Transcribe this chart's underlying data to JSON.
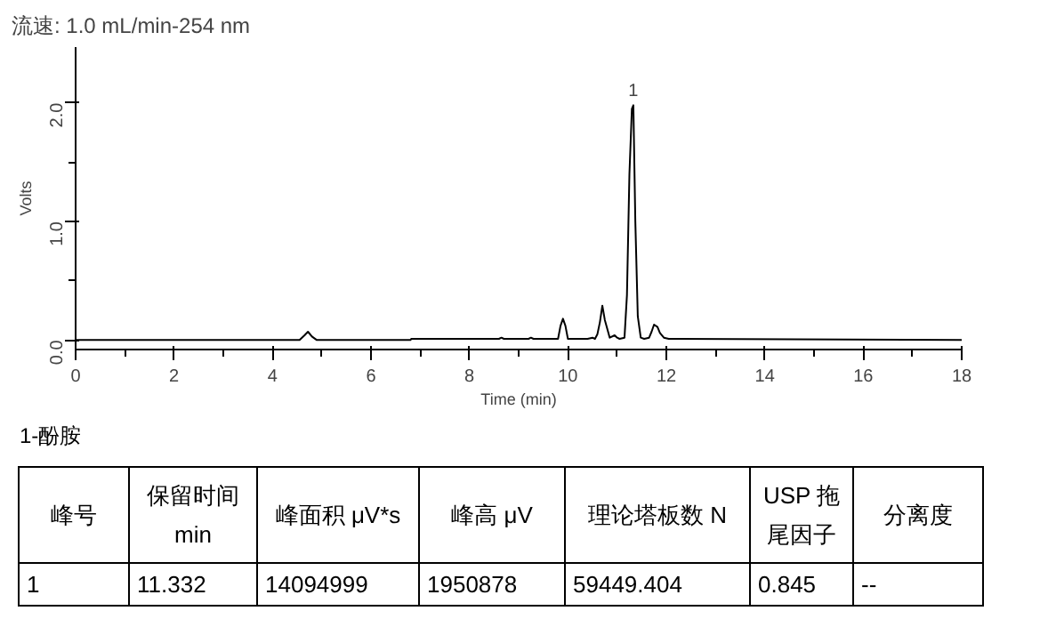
{
  "chart_data": {
    "type": "line",
    "title": "流速: 1.0 mL/min-254 nm",
    "xlabel": "Time (min)",
    "ylabel": "Volts",
    "x": [
      0,
      4.55,
      4.65,
      4.72,
      4.8,
      4.9,
      6.8,
      6.82,
      8.6,
      8.65,
      8.7,
      9.2,
      9.25,
      9.3,
      9.8,
      9.85,
      9.9,
      9.95,
      10.0,
      10.4,
      10.5,
      10.55,
      10.6,
      10.65,
      10.7,
      10.75,
      10.85,
      10.95,
      11.0,
      11.05,
      11.15,
      11.2,
      11.25,
      11.3,
      11.33,
      11.37,
      11.42,
      11.48,
      11.55,
      11.65,
      11.7,
      11.75,
      11.82,
      11.87,
      11.95,
      12.05,
      18
    ],
    "series": [
      {
        "color": "#000000",
        "values": [
          0,
          0,
          0.04,
          0.07,
          0.03,
          0,
          0,
          0.01,
          0.01,
          0.02,
          0.01,
          0.01,
          0.02,
          0.01,
          0.01,
          0.12,
          0.18,
          0.12,
          0.01,
          0.01,
          0.02,
          0.01,
          0.05,
          0.15,
          0.29,
          0.17,
          0.02,
          0.04,
          0.02,
          0.01,
          0.02,
          0.38,
          1.4,
          1.95,
          1.98,
          1.0,
          0.2,
          0.02,
          0.01,
          0.02,
          0.07,
          0.13,
          0.11,
          0.06,
          0.02,
          0.01,
          0
        ]
      }
    ],
    "xlim": [
      0,
      18
    ],
    "xticks": [
      0,
      2,
      4,
      6,
      8,
      10,
      12,
      14,
      16,
      18
    ],
    "ylim": [
      -0.08,
      2.47
    ],
    "yticks": [
      {
        "value": 0,
        "label": "0.0"
      },
      {
        "value": 1,
        "label": "1.0"
      },
      {
        "value": 2,
        "label": "2.0"
      }
    ],
    "grid": false,
    "annotations": [
      {
        "text": "1",
        "x": 11.33,
        "y": 1.98
      },
      "1-酚胺",
      "峰号",
      "保留时间 min",
      "峰面积 μV*s",
      "峰高 μV",
      "理论塔板数 N",
      "USP 拖尾因子",
      "分离度",
      "1",
      "11.332",
      "14094999",
      "1950878",
      "59449.404",
      "0.845",
      "--"
    ]
  }
}
